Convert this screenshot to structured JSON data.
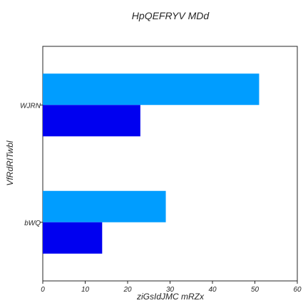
{
  "chart_data": {
    "type": "bar",
    "orientation": "horizontal",
    "title": "HpQEFRYV MDd",
    "xlabel": "ziGsIdJMC mRZx",
    "ylabel": "VfRdRITwbl",
    "categories": [
      "bWQ",
      "WJRN"
    ],
    "series": [
      {
        "values": [
          29,
          51
        ],
        "color": "#009dff"
      },
      {
        "values": [
          14,
          23
        ],
        "color": "#0000f0"
      }
    ],
    "xlim": [
      0,
      60
    ],
    "xticks": [
      "0",
      "10",
      "20",
      "30",
      "40",
      "50",
      "60"
    ],
    "grid": false,
    "legend": false
  }
}
